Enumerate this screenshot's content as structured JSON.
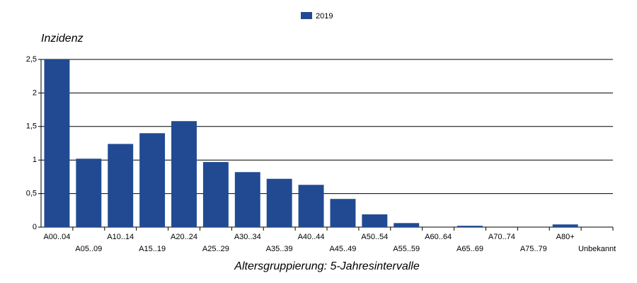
{
  "chart_data": {
    "type": "bar",
    "y_label": "Inzidenz",
    "x_label": "Altersgruppierung: 5-Jahresintervalle",
    "categories": [
      "A00..04",
      "A05..09",
      "A10..14",
      "A15..19",
      "A20..24",
      "A25..29",
      "A30..34",
      "A35..39",
      "A40..44",
      "A45..49",
      "A50..54",
      "A55..59",
      "A60..64",
      "A65..69",
      "A70..74",
      "A75..79",
      "A80+",
      "Unbekannt"
    ],
    "series": [
      {
        "name": "2019",
        "color": "#214a93",
        "values": [
          2.5,
          1.02,
          1.24,
          1.4,
          1.58,
          0.97,
          0.82,
          0.72,
          0.63,
          0.42,
          0.19,
          0.06,
          0,
          0.02,
          0,
          0,
          0.04,
          0
        ]
      }
    ],
    "ylim": [
      0,
      2.5
    ],
    "yticks": [
      0,
      {
        "value": 0.5,
        "label": "0,5"
      },
      1,
      {
        "value": 1.5,
        "label": "1,5"
      },
      2,
      {
        "value": 2.5,
        "label": "2,5"
      }
    ],
    "grid": true,
    "legend": "top"
  }
}
